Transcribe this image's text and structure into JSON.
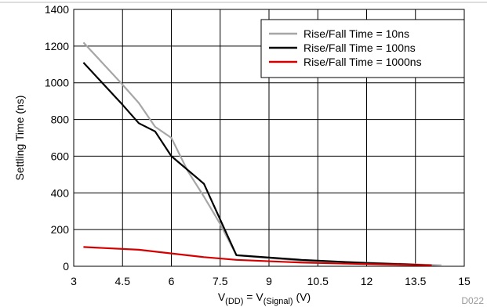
{
  "chart_data": {
    "type": "line",
    "xlabel": {
      "main": "V",
      "sub1": "(DD)",
      "mid": " = V",
      "sub2": "(Signal)",
      "unit": " (V)"
    },
    "ylabel": "Settling Time (ns)",
    "xlim": [
      3,
      15
    ],
    "ylim": [
      0,
      1400
    ],
    "x_ticks": [
      3,
      4.5,
      6,
      7.5,
      9,
      10.5,
      12,
      13.5,
      15
    ],
    "x_tick_labels": [
      "3",
      "4.5",
      "6",
      "7.5",
      "9",
      "10.5",
      "12",
      "13.5",
      "15"
    ],
    "y_ticks": [
      0,
      200,
      400,
      600,
      800,
      1000,
      1200,
      1400
    ],
    "y_tick_labels": [
      "0",
      "200",
      "400",
      "600",
      "800",
      "1000",
      "1200",
      "1400"
    ],
    "grid": true,
    "legend_position": "top-right",
    "figure_id": "D022",
    "series": [
      {
        "name": "Rise/Fall Time = 10ns",
        "color": "#a6a6a6",
        "x": [
          3.3,
          4.5,
          5,
          5.5,
          6,
          6.5,
          7,
          7.5,
          8,
          10,
          12,
          14.3
        ],
        "y": [
          1220,
          990,
          890,
          760,
          700,
          520,
          380,
          230,
          60,
          30,
          20,
          5
        ]
      },
      {
        "name": "Rise/Fall Time = 100ns",
        "color": "#000000",
        "x": [
          3.3,
          4.5,
          5,
          5.5,
          6,
          7,
          8,
          10,
          12,
          14
        ],
        "y": [
          1110,
          880,
          780,
          735,
          600,
          450,
          60,
          35,
          18,
          5
        ]
      },
      {
        "name": "Rise/Fall Time = 1000ns",
        "color": "#d40000",
        "x": [
          3.3,
          5,
          6,
          7,
          8,
          10,
          12,
          14
        ],
        "y": [
          105,
          90,
          70,
          50,
          35,
          20,
          12,
          5
        ]
      }
    ]
  }
}
